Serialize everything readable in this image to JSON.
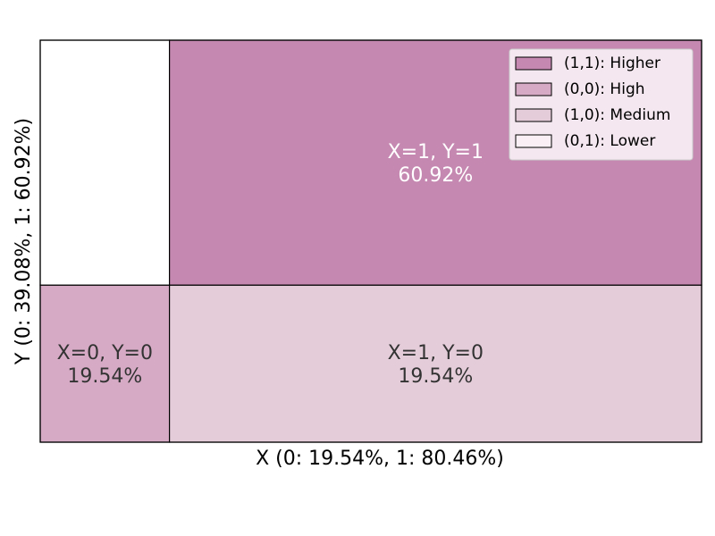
{
  "chart_data": {
    "type": "mosaic",
    "title": "",
    "xlabel": "X (0: 19.54%, 1: 80.46%)",
    "ylabel": "Y (0: 39.08%, 1: 60.92%)",
    "x_marginals": {
      "0": 19.54,
      "1": 80.46
    },
    "y_marginals": {
      "0": 39.08,
      "1": 60.92
    },
    "cells": [
      {
        "x": 0,
        "y": 0,
        "percent": 19.54,
        "category": "High",
        "color": "#d6aac4",
        "label_line1": "X=0, Y=0",
        "label_line2": "19.54%",
        "text_color": "#333333"
      },
      {
        "x": 0,
        "y": 1,
        "percent": 0.0,
        "category": "Lower",
        "color": "#ffffff",
        "label_line1": "",
        "label_line2": "",
        "text_color": "#333333"
      },
      {
        "x": 1,
        "y": 0,
        "percent": 19.54,
        "category": "Medium",
        "color": "#e5ccd9",
        "label_line1": "X=1, Y=0",
        "label_line2": "19.54%",
        "text_color": "#333333"
      },
      {
        "x": 1,
        "y": 1,
        "percent": 60.92,
        "category": "Higher",
        "color": "#c588b0",
        "label_line1": "X=1, Y=1",
        "label_line2": "60.92%",
        "text_color": "#ffffff"
      }
    ],
    "legend": {
      "placement": "top-right",
      "entries": [
        {
          "label": "(1,1): Higher",
          "color": "#c588b0"
        },
        {
          "label": "(0,0): High",
          "color": "#d6aac4"
        },
        {
          "label": "(1,0): Medium",
          "color": "#e5ccd9"
        },
        {
          "label": "(0,1): Lower",
          "color": "#f9eff4"
        }
      ]
    },
    "grid": false
  }
}
